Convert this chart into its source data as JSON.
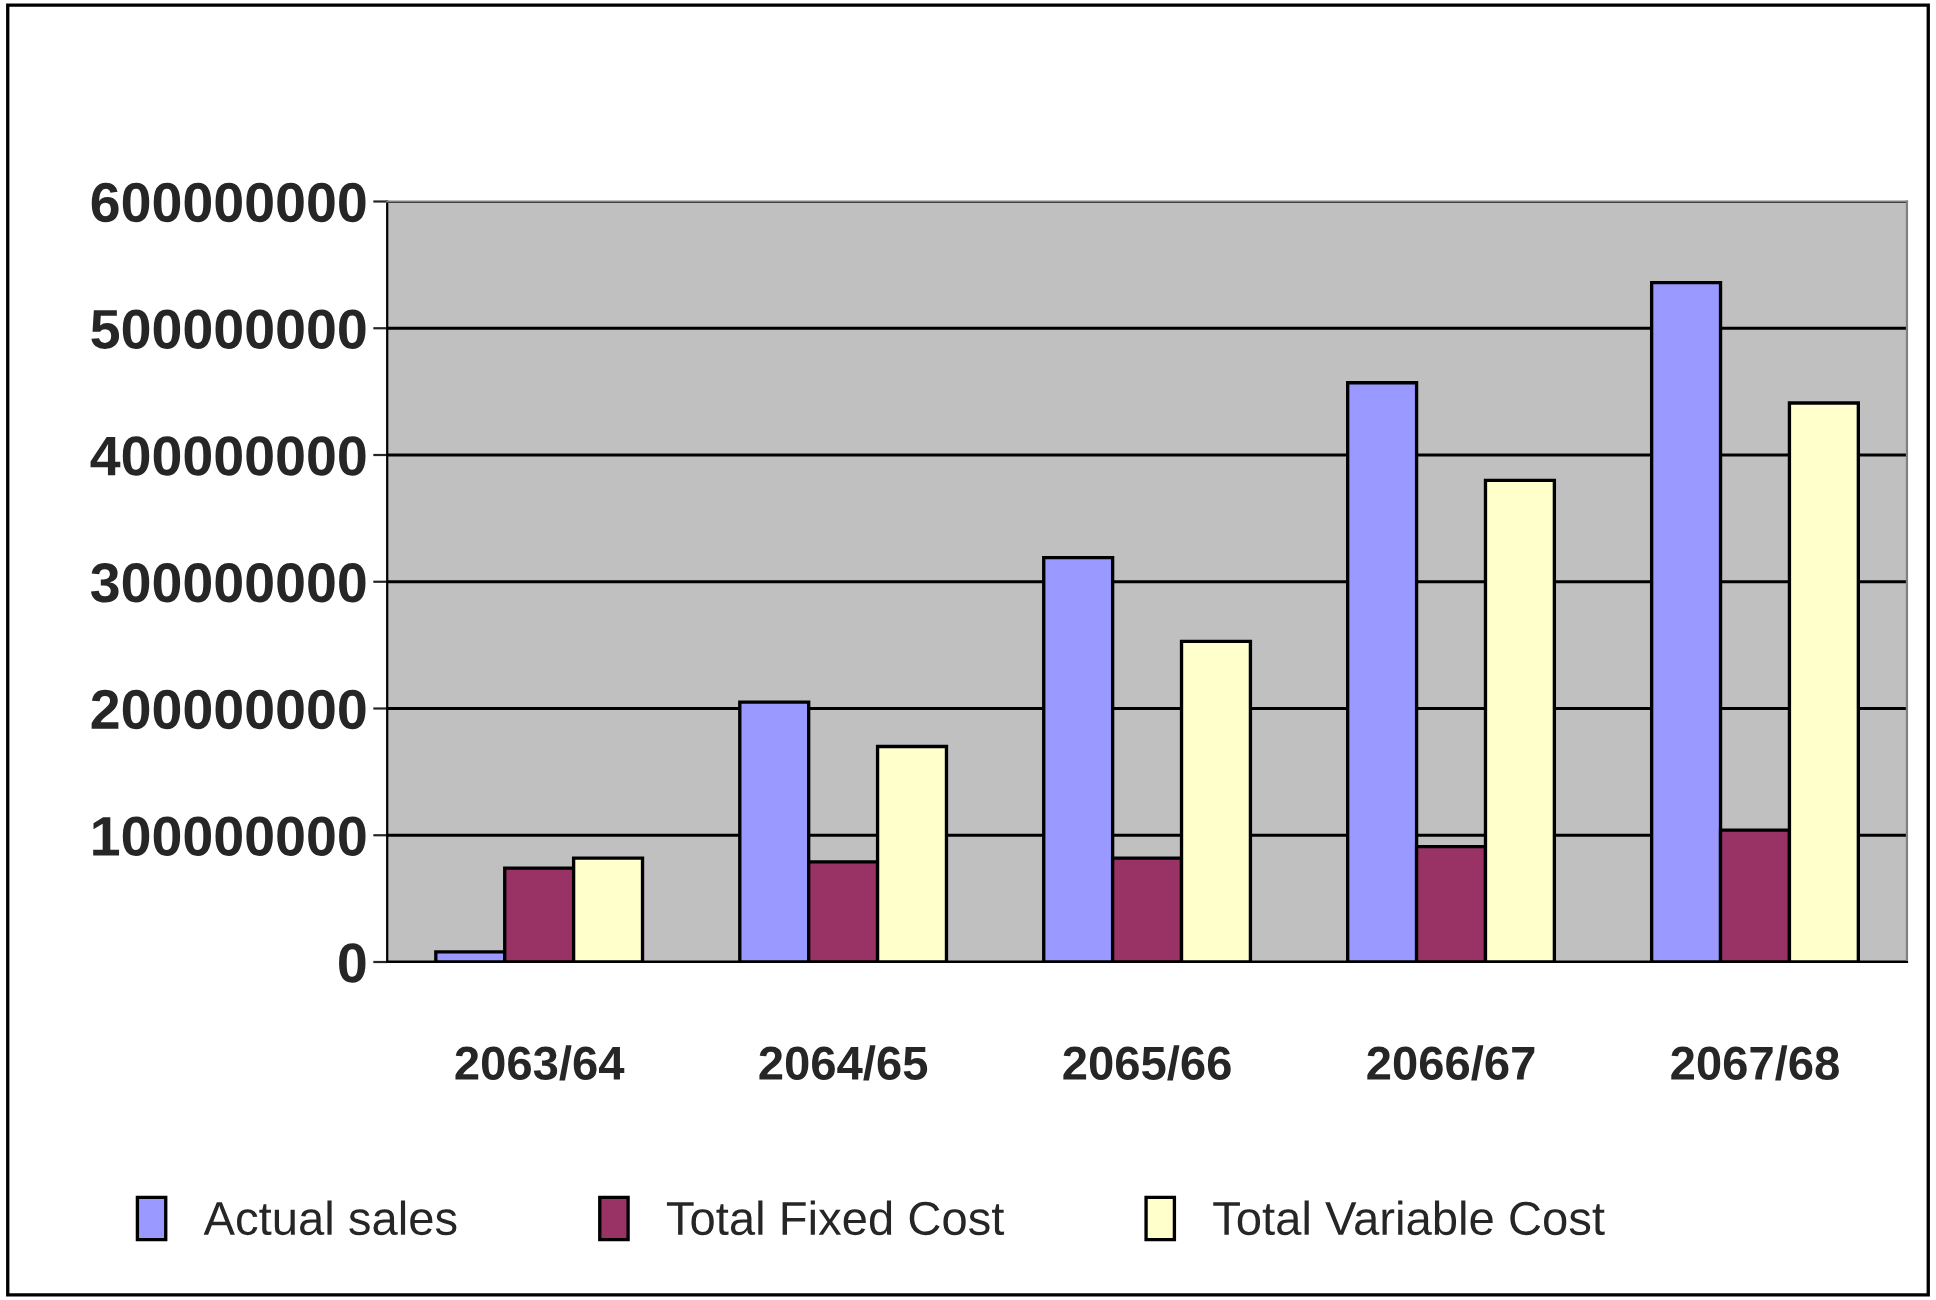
{
  "chart_data": {
    "type": "bar",
    "categories": [
      "2063/64",
      "2064/65",
      "2065/66",
      "2066/67",
      "2067/68"
    ],
    "series": [
      {
        "name": "Actual sales",
        "color": "#9999ff",
        "values": [
          8000000,
          205000000,
          319000000,
          457000000,
          536000000
        ]
      },
      {
        "name": "Total Fixed Cost",
        "color": "#993366",
        "values": [
          74000000,
          79000000,
          82000000,
          91000000,
          104000000
        ]
      },
      {
        "name": "Total Variable Cost",
        "color": "#ffffcc",
        "values": [
          82000000,
          170000000,
          253000000,
          380000000,
          441000000
        ]
      }
    ],
    "ylim": [
      0,
      600000000
    ],
    "yticks": [
      0,
      100000000,
      200000000,
      300000000,
      400000000,
      500000000,
      600000000
    ],
    "grid": "y",
    "legend": "bottom"
  }
}
